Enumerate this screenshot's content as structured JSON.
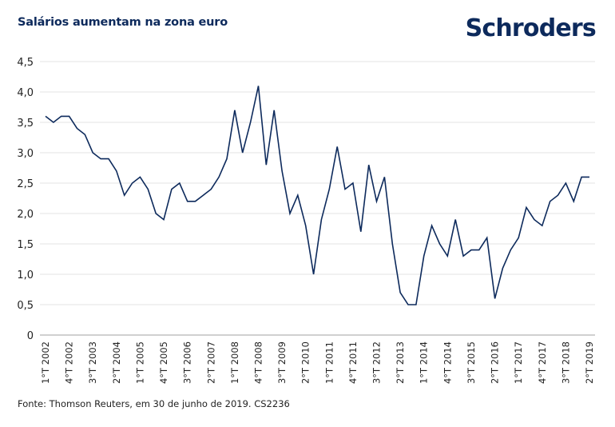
{
  "header": {
    "title": "Salários aumentam na zona euro",
    "logo": "Schroders"
  },
  "footer": {
    "source": "Fonte: Thomson Reuters, em 30 de junho de 2019. CS2236"
  },
  "colors": {
    "line": "#0d2a5c",
    "grid": "#e3e3e3",
    "axis": "#b5b5b5",
    "brand": "#0d2a5c"
  },
  "chart_data": {
    "type": "line",
    "title": "Salários aumentam na zona euro",
    "xlabel": "",
    "ylabel": "",
    "ylim": [
      0,
      4.5
    ],
    "yticks": [
      0,
      0.5,
      1.0,
      1.5,
      2.0,
      2.5,
      3.0,
      3.5,
      4.0,
      4.5
    ],
    "ytick_labels": [
      "0",
      "0,5",
      "1,0",
      "1,5",
      "2,0",
      "2,5",
      "3,0",
      "3,5",
      "4,0",
      "4,5"
    ],
    "grid": true,
    "legend": "none",
    "x": [
      "1°T 2002",
      "2°T 2002",
      "3°T 2002",
      "4°T 2002",
      "1°T 2003",
      "2°T 2003",
      "3°T 2003",
      "4°T 2003",
      "1°T 2004",
      "2°T 2004",
      "3°T 2004",
      "4°T 2004",
      "1°T 2005",
      "2°T 2005",
      "3°T 2005",
      "4°T 2005",
      "1°T 2006",
      "2°T 2006",
      "3°T 2006",
      "4°T 2006",
      "1°T 2007",
      "2°T 2007",
      "3°T 2007",
      "4°T 2007",
      "1°T 2008",
      "2°T 2008",
      "3°T 2008",
      "4°T 2008",
      "1°T 2009",
      "2°T 2009",
      "3°T 2009",
      "4°T 2009",
      "1°T 2010",
      "2°T 2010",
      "3°T 2010",
      "4°T 2010",
      "1°T 2011",
      "2°T 2011",
      "3°T 2011",
      "4°T 2011",
      "1°T 2012",
      "2°T 2012",
      "3°T 2012",
      "4°T 2012",
      "1°T 2013",
      "2°T 2013",
      "3°T 2013",
      "4°T 2013",
      "1°T 2014",
      "2°T 2014",
      "3°T 2014",
      "4°T 2014",
      "1°T 2015",
      "2°T 2015",
      "3°T 2015",
      "4°T 2015",
      "1°T 2016",
      "2°T 2016",
      "3°T 2016",
      "4°T 2016",
      "1°T 2017",
      "2°T 2017",
      "3°T 2017",
      "4°T 2017",
      "1°T 2018",
      "2°T 2018",
      "3°T 2018",
      "4°T 2018",
      "1°T 2019",
      "2°T 2019"
    ],
    "xtick_labels": [
      "1°T 2002",
      "4°T 2002",
      "3°T 2003",
      "2°T 2004",
      "1°T 2005",
      "4°T 2005",
      "3°T 2006",
      "2°T 2007",
      "1°T 2008",
      "4°T 2008",
      "3°T 2009",
      "2°T 2010",
      "1°T 2011",
      "4°T 2011",
      "3°T 2012",
      "2°T 2013",
      "1°T 2014",
      "4°T 2014",
      "3°T 2015",
      "2°T 2016",
      "1°T 2017",
      "4°T 2017",
      "3°T 2018",
      "2°T 2019"
    ],
    "xtick_every": 3,
    "series": [
      {
        "name": "Salários zona euro",
        "values": [
          3.6,
          3.5,
          3.6,
          3.6,
          3.4,
          3.3,
          3.0,
          2.9,
          2.9,
          2.7,
          2.3,
          2.5,
          2.6,
          2.4,
          2.0,
          1.9,
          2.4,
          2.5,
          2.2,
          2.2,
          2.3,
          2.4,
          2.6,
          2.9,
          3.7,
          3.0,
          3.5,
          4.1,
          2.8,
          3.7,
          2.7,
          2.0,
          2.3,
          1.8,
          1.0,
          1.9,
          2.4,
          3.1,
          2.4,
          2.5,
          1.7,
          2.8,
          2.2,
          2.6,
          1.5,
          0.7,
          0.5,
          0.5,
          1.3,
          1.8,
          1.5,
          1.3,
          1.9,
          1.3,
          1.4,
          1.4,
          1.6,
          0.6,
          1.1,
          1.4,
          1.6,
          2.1,
          1.9,
          1.8,
          2.2,
          2.3,
          2.5,
          2.2,
          2.6,
          2.6
        ]
      }
    ]
  }
}
